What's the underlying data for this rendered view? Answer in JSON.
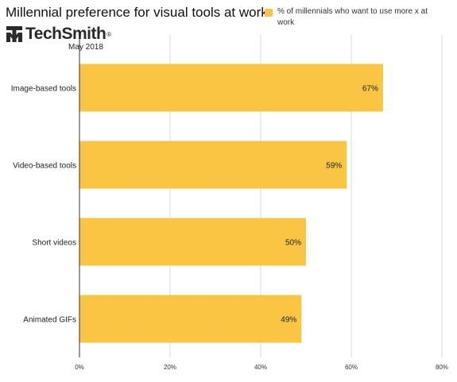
{
  "header": {
    "title": "Millennial preference for visual tools at work",
    "brand": "TechSmith",
    "brand_mark": "®",
    "date": "May 2018"
  },
  "legend": {
    "label": "% of millennials who want to use more x at work",
    "color": "#fac543"
  },
  "chart_data": {
    "type": "bar",
    "orientation": "horizontal",
    "title": "Millennial preference for visual tools at work",
    "categories": [
      "Image-based tools",
      "Video-based tools",
      "Short videos",
      "Animated GIFs"
    ],
    "series": [
      {
        "name": "% of millennials who want to use more x at work",
        "values": [
          67,
          59,
          50,
          49
        ],
        "color": "#fac543"
      }
    ],
    "data_labels": [
      "67%",
      "59%",
      "50%",
      "49%"
    ],
    "xlim": [
      0,
      80
    ],
    "x_ticks": [
      "0%",
      "20%",
      "40%",
      "60%",
      "80%"
    ],
    "x_tick_values": [
      0,
      20,
      40,
      60,
      80
    ],
    "grid": true,
    "legend_position": "top-right"
  }
}
